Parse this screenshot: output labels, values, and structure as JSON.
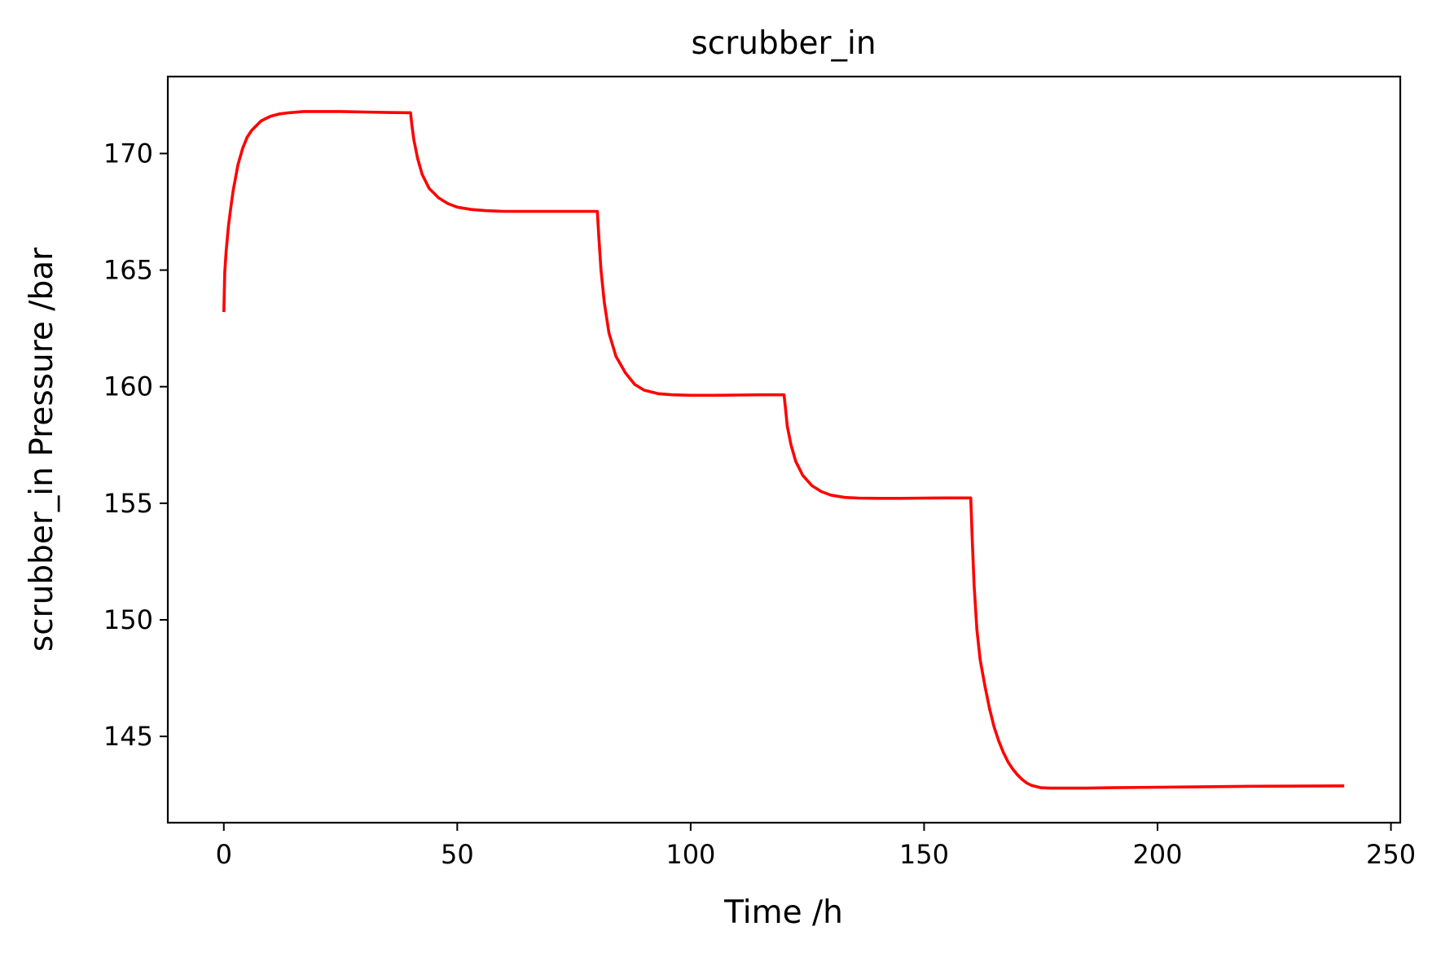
{
  "chart_data": {
    "type": "line",
    "title": "scrubber_in",
    "xlabel": "Time /h",
    "ylabel": "scrubber_in Pressure /bar",
    "xlim": [
      -12,
      252
    ],
    "ylim": [
      141.3,
      173.3
    ],
    "xticks": [
      0,
      50,
      100,
      150,
      200,
      250
    ],
    "yticks": [
      145,
      150,
      155,
      160,
      165,
      170
    ],
    "grid": false,
    "series": [
      {
        "name": "scrubber_in",
        "color": "#ff0000",
        "x": [
          0,
          0.2,
          0.5,
          1,
          1.5,
          2,
          3,
          4,
          5,
          6,
          8,
          10,
          12,
          14,
          17,
          20,
          25,
          30,
          35,
          40,
          40.3,
          40.7,
          41.5,
          42.5,
          44,
          46,
          48,
          50,
          53,
          56,
          60,
          65,
          70,
          75,
          80,
          80.3,
          80.8,
          81.5,
          82.5,
          84,
          86,
          88,
          90,
          93,
          96,
          100,
          105,
          110,
          115,
          120,
          120.3,
          120.7,
          121.5,
          122.5,
          124,
          126,
          128,
          130,
          133,
          136,
          140,
          145,
          150,
          155,
          160,
          160.3,
          160.7,
          161.3,
          162,
          163,
          164,
          165,
          166,
          167,
          168,
          169,
          170,
          171,
          172,
          173,
          175,
          177,
          180,
          185,
          190,
          200,
          210,
          220,
          230,
          240
        ],
        "y": [
          163.2,
          164.9,
          165.8,
          166.9,
          167.7,
          168.4,
          169.5,
          170.2,
          170.7,
          171.0,
          171.4,
          171.6,
          171.7,
          171.75,
          171.8,
          171.8,
          171.8,
          171.78,
          171.76,
          171.75,
          171.2,
          170.6,
          169.8,
          169.1,
          168.5,
          168.1,
          167.85,
          167.7,
          167.6,
          167.55,
          167.52,
          167.52,
          167.52,
          167.52,
          167.52,
          166.5,
          165.0,
          163.6,
          162.3,
          161.3,
          160.6,
          160.1,
          159.85,
          159.7,
          159.65,
          159.63,
          159.63,
          159.64,
          159.65,
          159.65,
          159.1,
          158.3,
          157.5,
          156.8,
          156.2,
          155.75,
          155.5,
          155.35,
          155.25,
          155.22,
          155.21,
          155.21,
          155.22,
          155.23,
          155.23,
          153.5,
          151.5,
          149.6,
          148.3,
          147.2,
          146.2,
          145.4,
          144.8,
          144.3,
          143.9,
          143.6,
          143.35,
          143.15,
          143.0,
          142.9,
          142.8,
          142.78,
          142.78,
          142.78,
          142.8,
          142.82,
          142.84,
          142.86,
          142.87,
          142.88
        ]
      }
    ]
  }
}
